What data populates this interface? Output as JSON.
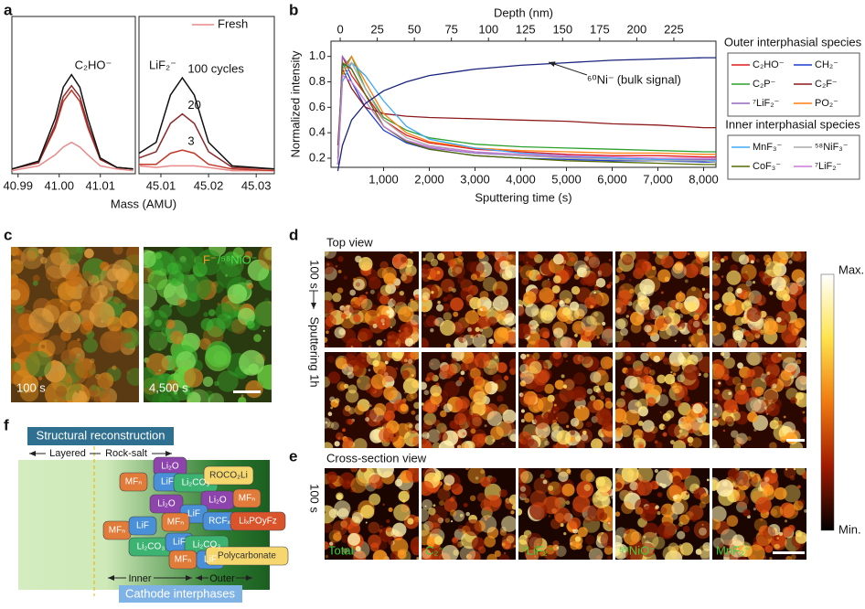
{
  "panel_labels": [
    "a",
    "b",
    "c",
    "d",
    "e",
    "f"
  ],
  "chart_data": [
    {
      "type": "line",
      "annotation": "C₂HO⁻",
      "xlabel": "Mass (AMU)",
      "x": [
        40.9885,
        40.995,
        40.999,
        41.001,
        41.003,
        41.005,
        41.007,
        41.01,
        41.014,
        41.018
      ],
      "xlim": [
        40.9885,
        41.0185
      ],
      "ylim": [
        0,
        1
      ],
      "xticks": [
        40.99,
        {
          "value": 41,
          "label": "41.00"
        },
        41.01
      ],
      "series": [
        {
          "color": "#e88a8a",
          "values": [
            0.02,
            0.05,
            0.12,
            0.17,
            0.2,
            0.17,
            0.12,
            0.05,
            0.03,
            0.02
          ]
        },
        {
          "color": "#c0392b",
          "values": [
            0.03,
            0.07,
            0.29,
            0.46,
            0.53,
            0.46,
            0.29,
            0.09,
            0.04,
            0.03
          ]
        },
        {
          "color": "#8b2a2a",
          "values": [
            0.03,
            0.07,
            0.31,
            0.49,
            0.56,
            0.49,
            0.31,
            0.09,
            0.04,
            0.03
          ]
        },
        {
          "color": "#111111",
          "values": [
            0.03,
            0.08,
            0.35,
            0.55,
            0.63,
            0.55,
            0.35,
            0.1,
            0.04,
            0.03
          ]
        }
      ]
    },
    {
      "type": "line",
      "annotation": "LiF₂⁻",
      "x": [
        45.0054,
        45.009,
        45.012,
        45.0145,
        45.017,
        45.02,
        45.025,
        45.0338
      ],
      "xlim": [
        45.0054,
        45.0338
      ],
      "ylim": [
        0,
        1
      ],
      "xticks": [
        45.01,
        45.02,
        45.03
      ],
      "series": [
        {
          "name": "Fresh",
          "color": "#e88a8a",
          "values": [
            0.05,
            0.04,
            0.05,
            0.05,
            0.05,
            0.04,
            0.02,
            0.02
          ]
        },
        {
          "label": "3",
          "color": "#c0392b",
          "values": [
            0.06,
            0.06,
            0.13,
            0.15,
            0.13,
            0.06,
            0.03,
            0.02
          ]
        },
        {
          "label": "20",
          "color": "#8b2a2a",
          "values": [
            0.1,
            0.14,
            0.32,
            0.38,
            0.32,
            0.14,
            0.04,
            0.03
          ]
        },
        {
          "label": "100 cycles",
          "color": "#111111",
          "values": [
            0.13,
            0.2,
            0.5,
            0.61,
            0.5,
            0.2,
            0.05,
            0.03
          ]
        }
      ]
    },
    {
      "type": "line",
      "xlabel": "Sputtering time (s)",
      "ylabel": "Normalized intensity",
      "x2label": "Depth (nm)",
      "x": [
        0,
        100,
        300,
        600,
        1000,
        1500,
        2000,
        3000,
        4000,
        5000,
        6000,
        7000,
        8000,
        8270
      ],
      "xlim": [
        -150,
        8270
      ],
      "ylim": [
        0.128,
        1.12
      ],
      "x2lim": [
        -6.2,
        253.4
      ],
      "xticks": [
        {
          "value": 1000,
          "label": "1,000"
        },
        {
          "value": 2000,
          "label": "2,000"
        },
        {
          "value": 3000,
          "label": "3,000"
        },
        {
          "value": 4000,
          "label": "4,000"
        },
        {
          "value": 5000,
          "label": "5,000"
        },
        {
          "value": 6000,
          "label": "6,000"
        },
        {
          "value": 7000,
          "label": "7,000"
        },
        {
          "value": 8000,
          "label": "8,000"
        }
      ],
      "yticks": [
        0.2,
        0.4,
        0.6,
        0.8,
        {
          "value": 1,
          "label": "1.0"
        }
      ],
      "x2ticks": [
        0,
        25,
        50,
        75,
        100,
        125,
        150,
        175,
        200,
        225
      ],
      "series_groups": [
        {
          "title": "Outer interphasial species",
          "series": [
            {
              "name": "C₂HO⁻",
              "color": "#e41a1c",
              "values": [
                0.15,
                1.0,
                0.85,
                0.7,
                0.5,
                0.38,
                0.32,
                0.27,
                0.25,
                0.23,
                0.22,
                0.22,
                0.21,
                0.21
              ]
            },
            {
              "name": "CH₂⁻",
              "color": "#1f3fd0",
              "values": [
                0.2,
                0.95,
                0.8,
                0.6,
                0.42,
                0.32,
                0.27,
                0.22,
                0.2,
                0.19,
                0.18,
                0.18,
                0.17,
                0.17
              ]
            },
            {
              "name": "C₂P⁻",
              "color": "#2ca02c",
              "values": [
                0.15,
                0.9,
                1.0,
                0.75,
                0.52,
                0.42,
                0.36,
                0.31,
                0.29,
                0.28,
                0.27,
                0.26,
                0.25,
                0.25
              ]
            },
            {
              "name": "C₂F⁻",
              "color": "#8b1a1a",
              "values": [
                0.3,
                0.9,
                0.75,
                0.6,
                0.55,
                0.53,
                0.52,
                0.51,
                0.5,
                0.49,
                0.47,
                0.46,
                0.44,
                0.44
              ]
            },
            {
              "name": "⁷LiF₂⁻",
              "color": "#9467bd",
              "values": [
                0.2,
                1.0,
                0.9,
                0.7,
                0.45,
                0.33,
                0.28,
                0.24,
                0.22,
                0.21,
                0.2,
                0.19,
                0.19,
                0.19
              ]
            },
            {
              "name": "PO₂⁻",
              "color": "#ff7f0e",
              "values": [
                0.15,
                0.85,
                1.0,
                0.8,
                0.55,
                0.4,
                0.33,
                0.28,
                0.26,
                0.25,
                0.24,
                0.24,
                0.23,
                0.23
              ]
            }
          ]
        },
        {
          "title": "Inner interphasial species",
          "series": [
            {
              "name": "MnF₃⁻",
              "color": "#3fa9f5",
              "values": [
                0.15,
                0.8,
                0.95,
                0.85,
                0.65,
                0.45,
                0.35,
                0.28,
                0.24,
                0.22,
                0.2,
                0.19,
                0.18,
                0.18
              ]
            },
            {
              "name": "⁵⁸NiF₃⁻",
              "color": "#aaaaaa",
              "values": [
                0.15,
                0.9,
                0.95,
                0.75,
                0.5,
                0.36,
                0.3,
                0.25,
                0.22,
                0.2,
                0.19,
                0.18,
                0.18,
                0.17
              ]
            },
            {
              "name": "CoF₃⁻",
              "color": "#556b00",
              "values": [
                0.15,
                0.95,
                0.9,
                0.7,
                0.45,
                0.33,
                0.27,
                0.22,
                0.2,
                0.18,
                0.17,
                0.16,
                0.15,
                0.15
              ]
            },
            {
              "name": "⁷LiF₂⁻",
              "color": "#c77dd6",
              "values": [
                0.15,
                0.85,
                0.8,
                0.65,
                0.45,
                0.34,
                0.29,
                0.25,
                0.23,
                0.22,
                0.21,
                0.2,
                0.2,
                0.2
              ]
            }
          ]
        }
      ],
      "bulk_series": {
        "name": "⁶⁰Ni⁻",
        "annotation": "(bulk signal)",
        "color": "#1a237e",
        "values": [
          0.1,
          0.3,
          0.5,
          0.63,
          0.73,
          0.8,
          0.85,
          0.9,
          0.93,
          0.95,
          0.97,
          0.98,
          0.99,
          0.99
        ]
      }
    }
  ],
  "panel_c": {
    "legend": [
      "F⁻",
      "/⁵⁸NiO⁻"
    ],
    "times": [
      "100 s",
      "4,500 s"
    ]
  },
  "panel_d": {
    "title": "Top view",
    "row_labels": [
      "100 s",
      "Sputtering 1h"
    ],
    "colorbar": {
      "max": "Max.",
      "min": "Min."
    }
  },
  "panel_e": {
    "title": "Cross-section view",
    "row_label": "100 s",
    "tiles": [
      "Total",
      "C₂⁻",
      "⁷LiF₂⁻",
      "⁵⁸NiO⁻",
      "MnF₂⁻"
    ]
  },
  "panel_f": {
    "title": "Structural reconstruction",
    "phases": [
      "Layered",
      "Rock-salt"
    ],
    "species": [
      {
        "label": "Li₂O",
        "color": "#8e44ad"
      },
      {
        "label": "MFₙ",
        "color": "#e07b39"
      },
      {
        "label": "LiF",
        "color": "#4a90d9"
      },
      {
        "label": "Li₂CO₃",
        "color": "#3cb371"
      },
      {
        "label": "ROCO₂Li",
        "color": "#f5d76e"
      },
      {
        "label": "Li₂O",
        "color": "#8e44ad"
      },
      {
        "label": "Li₂O",
        "color": "#8e44ad"
      },
      {
        "label": "MFₙ",
        "color": "#e07b39"
      },
      {
        "label": "LiF",
        "color": "#4a90d9"
      },
      {
        "label": "MFₙ",
        "color": "#e07b39"
      },
      {
        "label": "RCFₓ",
        "color": "#4a90d9"
      },
      {
        "label": "LiₓPOyFz",
        "color": "#d9542b"
      },
      {
        "label": "MFₙ",
        "color": "#e07b39"
      },
      {
        "label": "LiF",
        "color": "#4a90d9"
      },
      {
        "label": "Li₂CO₃",
        "color": "#3cb371"
      },
      {
        "label": "LiF",
        "color": "#4a90d9"
      },
      {
        "label": "Li₂CO₃",
        "color": "#3cb371"
      },
      {
        "label": "MFₙ",
        "color": "#e07b39"
      },
      {
        "label": "LiF",
        "color": "#4a90d9"
      },
      {
        "label": "Polycarbonate",
        "color": "#f5d76e"
      }
    ],
    "regions": [
      "Inner",
      "Outer"
    ],
    "caption": "Cathode interphases"
  }
}
